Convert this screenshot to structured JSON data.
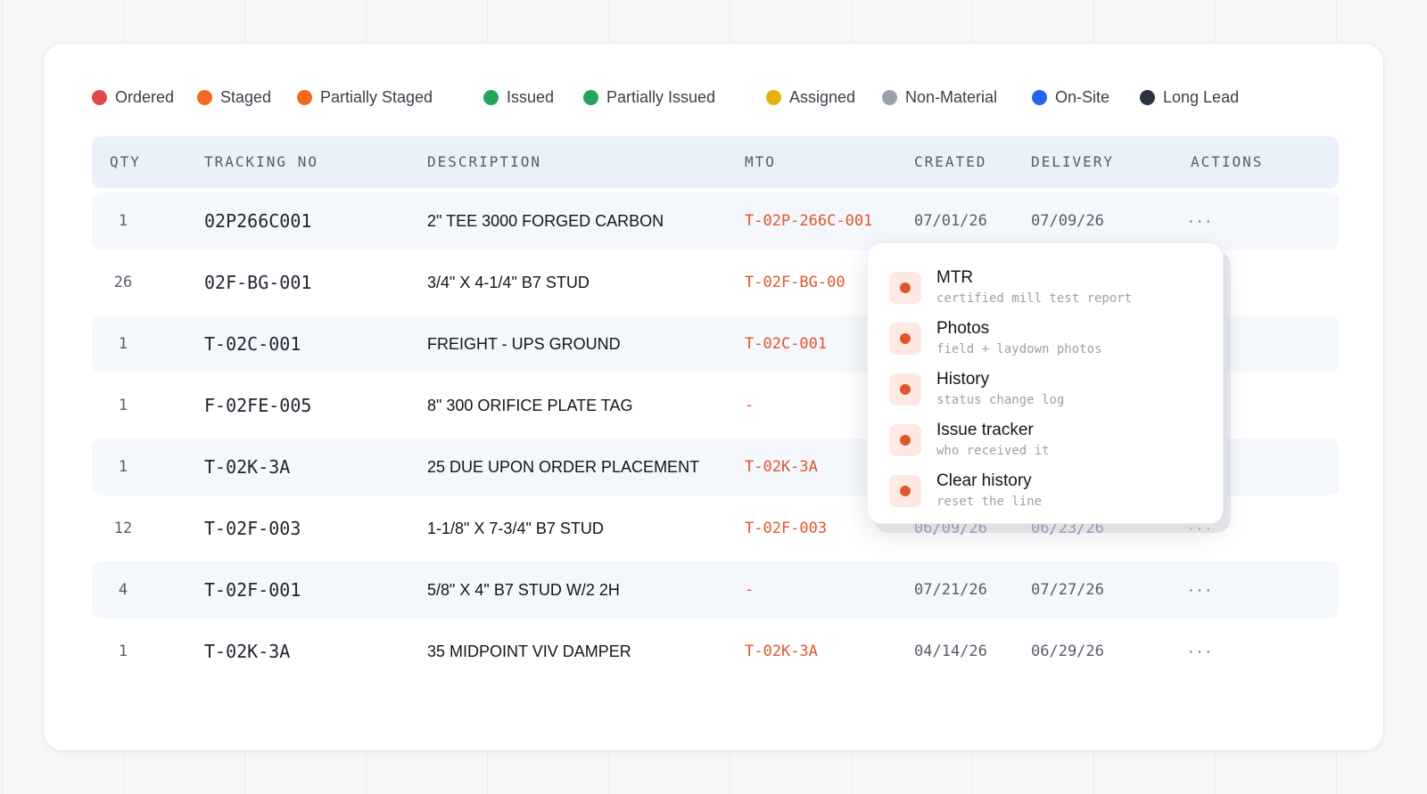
{
  "legend": [
    {
      "label": "Ordered",
      "color": "#e04848"
    },
    {
      "label": "Staged",
      "color": "#f26b1d"
    },
    {
      "label": "Partially Staged",
      "color": "#f26b1d"
    },
    {
      "label": "Issued",
      "color": "#22a55b"
    },
    {
      "label": "Partially Issued",
      "color": "#22a55b"
    },
    {
      "label": "Assigned",
      "color": "#e6b10c"
    },
    {
      "label": "Non-Material",
      "color": "#9aa1ad"
    },
    {
      "label": "On-Site",
      "color": "#2563eb"
    },
    {
      "label": "Long Lead",
      "color": "#2b3342"
    }
  ],
  "table": {
    "headers": {
      "qty": "QTY",
      "tracking": "TRACKING NO",
      "description": "DESCRIPTION",
      "mto": "MTO",
      "created": "CREATED",
      "delivery": "DELIVERY",
      "actions": "ACTIONS"
    },
    "rows": [
      {
        "qty": "1",
        "tracking": "02P266C001",
        "description": "2\" TEE 3000 FORGED CARBON",
        "mto": "T-02P-266C-001",
        "created": "07/01/26",
        "delivery": "07/09/26",
        "actions": "···"
      },
      {
        "qty": "26",
        "tracking": "02F-BG-001",
        "description": "3/4\" X 4-1/4\" B7 STUD",
        "mto": "T-02F-BG-00",
        "created": "",
        "delivery": "",
        "actions": "···"
      },
      {
        "qty": "1",
        "tracking": "T-02C-001",
        "description": "FREIGHT - UPS GROUND",
        "mto": "T-02C-001",
        "created": "",
        "delivery": "",
        "actions": "···"
      },
      {
        "qty": "1",
        "tracking": "F-02FE-005",
        "description": "8\" 300 ORIFICE PLATE TAG",
        "mto": "-",
        "created": "",
        "delivery": "",
        "actions": "···"
      },
      {
        "qty": "1",
        "tracking": "T-02K-3A",
        "description": "25 DUE UPON ORDER PLACEMENT",
        "mto": "T-02K-3A",
        "created": "",
        "delivery": "",
        "actions": "···"
      },
      {
        "qty": "12",
        "tracking": "T-02F-003",
        "description": "1-1/8\" X 7-3/4\" B7 STUD",
        "mto": "T-02F-003",
        "created": "06/09/26",
        "delivery": "06/23/26",
        "actions": "···"
      },
      {
        "qty": "4",
        "tracking": "T-02F-001",
        "description": "5/8\" X 4\" B7 STUD W/2 2H",
        "mto": "-",
        "created": "07/21/26",
        "delivery": "07/27/26",
        "actions": "···"
      },
      {
        "qty": "1",
        "tracking": "T-02K-3A",
        "description": "35 MIDPOINT VIV DAMPER",
        "mto": "T-02K-3A",
        "created": "04/14/26",
        "delivery": "06/29/26",
        "actions": "···"
      }
    ]
  },
  "actions_menu": [
    {
      "title": "MTR",
      "subtitle": "certified mill test report"
    },
    {
      "title": "Photos",
      "subtitle": "field + laydown photos"
    },
    {
      "title": "History",
      "subtitle": "status change log"
    },
    {
      "title": "Issue tracker",
      "subtitle": "who received it"
    },
    {
      "title": "Clear history",
      "subtitle": "reset the line"
    }
  ]
}
